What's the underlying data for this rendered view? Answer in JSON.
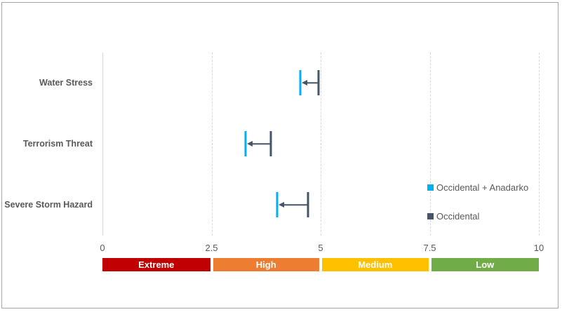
{
  "chart_data": {
    "type": "dumbbell",
    "title": "",
    "xlabel": "",
    "ylabel": "",
    "xlim": [
      0,
      10
    ],
    "x_ticks": [
      "0",
      "2.5",
      "5",
      "7.5",
      "10"
    ],
    "x_tick_values": [
      0,
      2.5,
      5,
      7.5,
      10
    ],
    "categories": [
      "Water Stress",
      "Terrorism Threat",
      "Severe Storm Hazard"
    ],
    "series": [
      {
        "name": "Occidental + Anadarko",
        "color": "#00b0f0",
        "values": [
          4.53,
          3.28,
          4.0
        ]
      },
      {
        "name": "Occidental",
        "color": "#44546a",
        "values": [
          4.95,
          3.86,
          4.71
        ]
      }
    ],
    "arrows": "from Occidental to Occidental + Anadarko",
    "grid": "vertical dashed at 2.5, 5, 7.5, 10",
    "legend_position": "right",
    "risk_bands": [
      {
        "label": "Extreme",
        "from": 0,
        "to": 2.5,
        "color": "#c00000"
      },
      {
        "label": "High",
        "from": 2.5,
        "to": 5,
        "color": "#ed7d31"
      },
      {
        "label": "Medium",
        "from": 5,
        "to": 7.5,
        "color": "#ffc000"
      },
      {
        "label": "Low",
        "from": 7.5,
        "to": 10,
        "color": "#70ad47"
      }
    ]
  }
}
